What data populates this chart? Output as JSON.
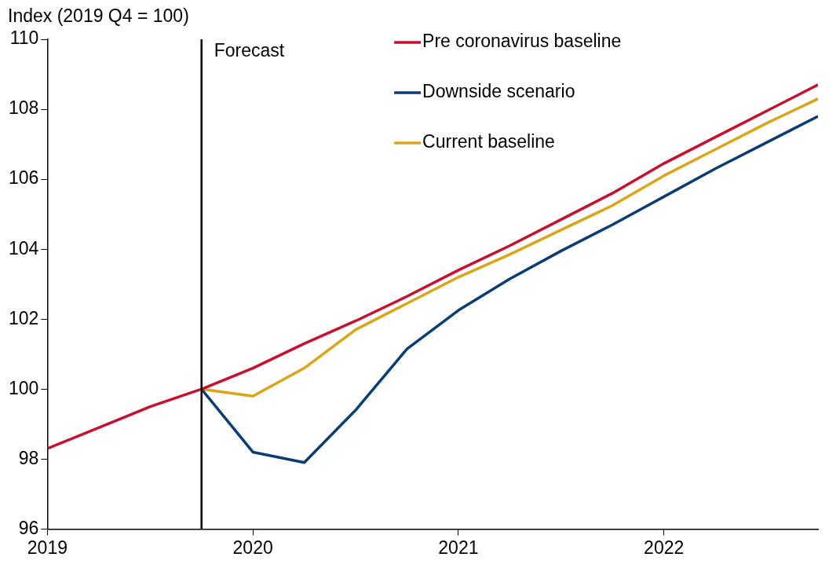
{
  "chart_data": {
    "type": "line",
    "ylabel": "Index (2019 Q4 = 100)",
    "x": [
      2019,
      2019.25,
      2019.5,
      2019.75,
      2020,
      2020.25,
      2020.5,
      2020.75,
      2021,
      2021.25,
      2021.5,
      2021.75,
      2022,
      2022.25,
      2022.5,
      2022.75
    ],
    "series": [
      {
        "name": "Pre coronavirus baseline",
        "color": "#c8102e",
        "values": [
          98.3,
          98.9,
          99.5,
          100,
          100.6,
          101.3,
          101.95,
          102.65,
          103.4,
          104.1,
          104.85,
          105.6,
          106.45,
          107.2,
          107.95,
          108.7
        ]
      },
      {
        "name": "Downside scenario",
        "color": "#0b3d74",
        "values": [
          null,
          null,
          null,
          100,
          98.2,
          97.9,
          99.4,
          101.15,
          102.25,
          103.15,
          103.95,
          104.7,
          105.5,
          106.3,
          107.05,
          107.8
        ]
      },
      {
        "name": "Current baseline",
        "color": "#dba519",
        "values": [
          null,
          null,
          null,
          100,
          99.8,
          100.6,
          101.7,
          102.45,
          103.2,
          103.85,
          104.55,
          105.25,
          106.1,
          106.85,
          107.6,
          108.3
        ]
      }
    ],
    "xlim": [
      2019,
      2022.75
    ],
    "xticks": [
      2019,
      2020,
      2021,
      2022
    ],
    "ylim": [
      96,
      110
    ],
    "yticks": [
      96,
      98,
      100,
      102,
      104,
      106,
      108,
      110
    ],
    "ref_lines": [
      {
        "axis": "x",
        "value": 2019.75,
        "label": "Forecast",
        "color": "#000000"
      }
    ],
    "grid": false,
    "legend": "top right",
    "marker": "none",
    "line_style": "solid"
  }
}
